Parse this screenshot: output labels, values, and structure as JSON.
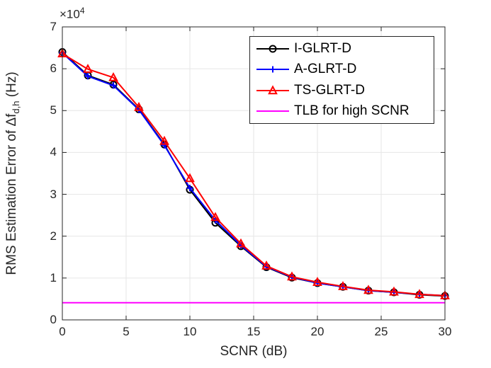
{
  "figure": {
    "xlabel": "SCNR (dB)",
    "ylabel_prefix": "RMS Estimation Error of Δf",
    "ylabel_sub": "d,h",
    "ylabel_suffix": " (Hz)",
    "y_exponent_base": "×10",
    "y_exponent_power": "4"
  },
  "colors": {
    "axis": "#262626",
    "grid": "#e6e6e6",
    "background": "#ffffff",
    "series_black": "#000000",
    "series_blue": "#0000ff",
    "series_red": "#ff0000",
    "series_magenta": "#ff00ff"
  },
  "chart_data": {
    "type": "line",
    "title": "",
    "xlabel": "SCNR (dB)",
    "ylabel": "RMS Estimation Error of Δf_d,h (Hz)",
    "y_units_multiplier": "×10^4",
    "xlim": [
      0,
      30
    ],
    "ylim": [
      0,
      7
    ],
    "xticks": [
      "0",
      "5",
      "10",
      "15",
      "20",
      "25",
      "30"
    ],
    "yticks": [
      "0",
      "1",
      "2",
      "3",
      "4",
      "5",
      "6",
      "7"
    ],
    "grid": true,
    "legend_position": "top-right-inside",
    "x": [
      0,
      2,
      4,
      6,
      8,
      10,
      12,
      14,
      16,
      18,
      20,
      22,
      24,
      26,
      28,
      30
    ],
    "series": [
      {
        "name": "I-GLRT-D",
        "color": "#000000",
        "marker": "circle",
        "values": [
          6.4,
          5.84,
          5.62,
          5.03,
          4.19,
          3.11,
          2.32,
          1.76,
          1.26,
          1.01,
          0.88,
          0.79,
          0.7,
          0.66,
          0.6,
          0.57
        ]
      },
      {
        "name": "A-GLRT-D",
        "color": "#0000ff",
        "marker": "plus",
        "values": [
          6.38,
          5.82,
          5.6,
          5.02,
          4.17,
          3.15,
          2.38,
          1.78,
          1.27,
          1.02,
          0.88,
          0.79,
          0.7,
          0.66,
          0.61,
          0.58
        ]
      },
      {
        "name": "TS-GLRT-D",
        "color": "#ff0000",
        "marker": "triangle",
        "values": [
          6.36,
          5.99,
          5.79,
          5.08,
          4.27,
          3.38,
          2.45,
          1.82,
          1.29,
          1.03,
          0.9,
          0.8,
          0.71,
          0.67,
          0.61,
          0.58
        ]
      },
      {
        "name": "TLB for high SCNR",
        "color": "#ff00ff",
        "marker": "none",
        "style": "hline",
        "value": 0.41
      }
    ]
  }
}
